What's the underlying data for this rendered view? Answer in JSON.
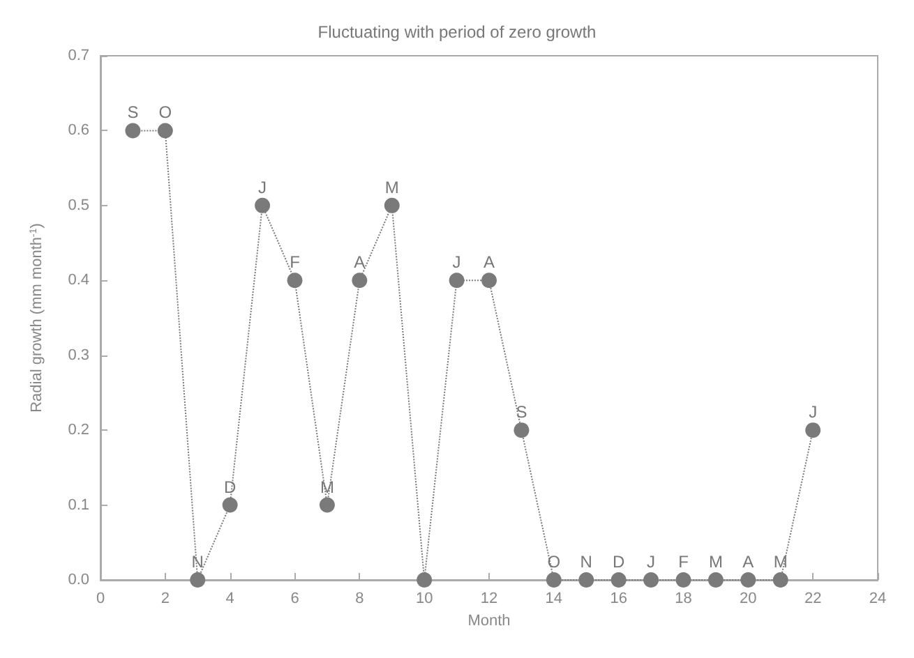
{
  "chart_data": {
    "type": "line",
    "title": "Fluctuating with period of zero growth",
    "xlabel": "Month",
    "ylabel": "Radial growth (mm month$^{-1}$)",
    "x": [
      1,
      2,
      3,
      4,
      5,
      6,
      7,
      8,
      9,
      10,
      11,
      12,
      13,
      14,
      15,
      16,
      17,
      18,
      19,
      20,
      21,
      22
    ],
    "series": [
      {
        "color": "#7a7a7a",
        "values": [
          0.6,
          0.6,
          0,
          0.1,
          0.5,
          0.4,
          0.1,
          0.4,
          0.5,
          0,
          0.4,
          0.4,
          0.2,
          0,
          0,
          0,
          0,
          0,
          0,
          0,
          0,
          0.2
        ]
      }
    ],
    "xlim": [
      0,
      24
    ],
    "xticks": [
      0,
      2,
      4,
      6,
      8,
      10,
      12,
      14,
      16,
      18,
      20,
      22,
      24
    ],
    "ylim": [
      0,
      0.7
    ],
    "yticks": [
      {
        "value": 0,
        "label": "0.0"
      },
      0.1,
      0.2,
      0.3,
      0.4,
      0.5,
      0.6,
      0.7
    ],
    "marker": "circle",
    "line_style": "dotted",
    "grid": false,
    "annotations": [
      {
        "text": "S",
        "x": 1,
        "y": 0.6
      },
      {
        "text": "O",
        "x": 2,
        "y": 0.6
      },
      {
        "text": "N",
        "x": 3,
        "y": 0
      },
      {
        "text": "D",
        "x": 4,
        "y": 0.1
      },
      {
        "text": "J",
        "x": 5,
        "y": 0.5
      },
      {
        "text": "F",
        "x": 6,
        "y": 0.4
      },
      {
        "text": "M",
        "x": 7,
        "y": 0.1
      },
      {
        "text": "A",
        "x": 8,
        "y": 0.4
      },
      {
        "text": "M",
        "x": 9,
        "y": 0.5
      },
      {
        "text": "J",
        "x": 11,
        "y": 0.4
      },
      {
        "text": "A",
        "x": 12,
        "y": 0.4
      },
      {
        "text": "S",
        "x": 13,
        "y": 0.2
      },
      {
        "text": "O",
        "x": 14,
        "y": 0
      },
      {
        "text": "N",
        "x": 15,
        "y": 0
      },
      {
        "text": "D",
        "x": 16,
        "y": 0
      },
      {
        "text": "J",
        "x": 17,
        "y": 0
      },
      {
        "text": "F",
        "x": 18,
        "y": 0
      },
      {
        "text": "M",
        "x": 19,
        "y": 0
      },
      {
        "text": "A",
        "x": 20,
        "y": 0
      },
      {
        "text": "M",
        "x": 21,
        "y": 0
      },
      {
        "text": "J",
        "x": 22,
        "y": 0.2
      }
    ]
  }
}
